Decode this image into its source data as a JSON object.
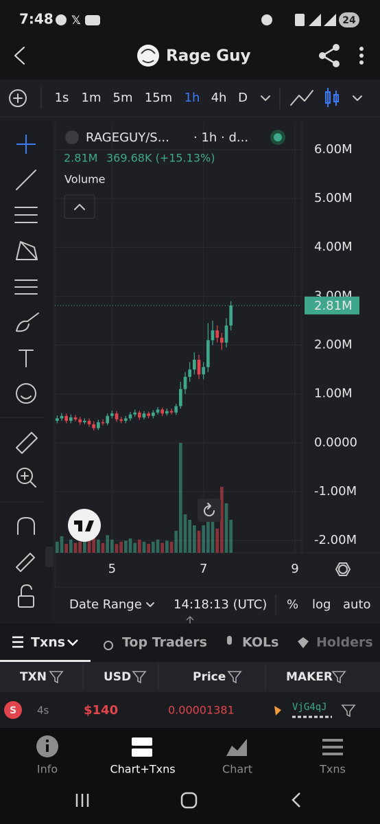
{
  "status_bar": {
    "time": "7:48",
    "battery": "24"
  },
  "header": {
    "title": "Rage Guy"
  },
  "toolbar": {
    "intervals": [
      "1s",
      "1m",
      "5m",
      "15m",
      "1h",
      "4h",
      "D"
    ],
    "active_interval": "1h"
  },
  "chart_data": {
    "type": "candlestick",
    "symbol": "RAGEGUY/S...",
    "interval_info": "· 1h · d...",
    "last_price": "2.81M",
    "change": "369.68K (+15.13%)",
    "volume_label": "Volume",
    "x": [
      3.8,
      3.9,
      4.0,
      4.1,
      4.2,
      4.3,
      4.4,
      4.5,
      4.6,
      4.7,
      4.8,
      4.9,
      5.0,
      5.1,
      5.2,
      5.3,
      5.4,
      5.5,
      5.6,
      5.7,
      5.8,
      5.9,
      6.0,
      6.1,
      6.2,
      6.3,
      6.4,
      6.5,
      6.6,
      6.7,
      6.8,
      6.9,
      7.0,
      7.1,
      7.2,
      7.3,
      7.4,
      7.5,
      7.6
    ],
    "open": [
      0.45,
      0.5,
      0.55,
      0.45,
      0.52,
      0.48,
      0.42,
      0.45,
      0.38,
      0.3,
      0.42,
      0.4,
      0.55,
      0.6,
      0.48,
      0.45,
      0.5,
      0.58,
      0.62,
      0.52,
      0.6,
      0.55,
      0.62,
      0.68,
      0.6,
      0.65,
      0.62,
      0.75,
      1.1,
      1.35,
      1.5,
      1.7,
      1.4,
      1.55,
      2.1,
      2.3,
      2.15,
      2.05,
      2.4
    ],
    "high": [
      0.56,
      0.61,
      0.6,
      0.58,
      0.57,
      0.53,
      0.5,
      0.5,
      0.44,
      0.47,
      0.48,
      0.6,
      0.66,
      0.65,
      0.53,
      0.55,
      0.63,
      0.68,
      0.66,
      0.65,
      0.64,
      0.67,
      0.73,
      0.72,
      0.7,
      0.7,
      0.8,
      1.25,
      1.45,
      1.65,
      1.85,
      1.8,
      1.65,
      2.45,
      2.5,
      2.4,
      2.25,
      2.55,
      2.9
    ],
    "low": [
      0.4,
      0.45,
      0.4,
      0.4,
      0.44,
      0.37,
      0.38,
      0.33,
      0.25,
      0.26,
      0.36,
      0.36,
      0.5,
      0.43,
      0.4,
      0.4,
      0.45,
      0.53,
      0.47,
      0.48,
      0.5,
      0.5,
      0.58,
      0.55,
      0.56,
      0.58,
      0.57,
      0.7,
      1.0,
      1.25,
      1.4,
      1.3,
      1.3,
      1.45,
      2.0,
      2.05,
      1.9,
      1.95,
      2.3
    ],
    "close": [
      0.5,
      0.55,
      0.45,
      0.52,
      0.48,
      0.42,
      0.45,
      0.38,
      0.3,
      0.42,
      0.4,
      0.55,
      0.6,
      0.48,
      0.45,
      0.5,
      0.58,
      0.62,
      0.52,
      0.6,
      0.55,
      0.62,
      0.68,
      0.6,
      0.65,
      0.62,
      0.75,
      1.1,
      1.35,
      1.5,
      1.7,
      1.4,
      1.55,
      2.1,
      2.3,
      2.15,
      2.05,
      2.4,
      2.81
    ],
    "volume": [
      10,
      15,
      8,
      12,
      9,
      10,
      14,
      11,
      18,
      12,
      9,
      16,
      12,
      8,
      10,
      11,
      13,
      9,
      12,
      10,
      8,
      10,
      12,
      9,
      11,
      10,
      20,
      100,
      35,
      30,
      25,
      20,
      25,
      40,
      30,
      22,
      60,
      45,
      30
    ],
    "xlim": [
      3.75,
      9.15
    ],
    "xticks": [
      5,
      7,
      9
    ],
    "ylim": [
      -2.25,
      6.56
    ],
    "yticks": [
      {
        "value": 6,
        "label": "6.00M"
      },
      {
        "value": 5,
        "label": "5.00M"
      },
      {
        "value": 4,
        "label": "4.00M"
      },
      {
        "value": 3,
        "label": "3.00M"
      },
      {
        "value": 2,
        "label": "2.00M"
      },
      {
        "value": 1,
        "label": "1.00M"
      },
      {
        "value": 0,
        "label": "0.0000"
      },
      {
        "value": -1,
        "label": "-1.00M"
      },
      {
        "value": -2,
        "label": "-2.00M"
      }
    ],
    "up_color": "#3fa88c",
    "down_color": "#e0444c",
    "grid": true
  },
  "range_bar": {
    "date_range": "Date Range",
    "time": "14:18:13 (UTC)",
    "percent": "%",
    "log": "log",
    "auto": "auto"
  },
  "tabs": [
    "Txns",
    "Top Traders",
    "KOLs",
    "Holders"
  ],
  "table": {
    "columns": [
      "TXN",
      "USD",
      "Price",
      "MAKER"
    ],
    "rows": [
      [
        "S",
        "4s",
        "$140",
        "0.00001381",
        "VjG4qJ"
      ]
    ]
  },
  "bottom_nav": [
    "Info",
    "Chart+Txns",
    "Chart",
    "Txns"
  ]
}
